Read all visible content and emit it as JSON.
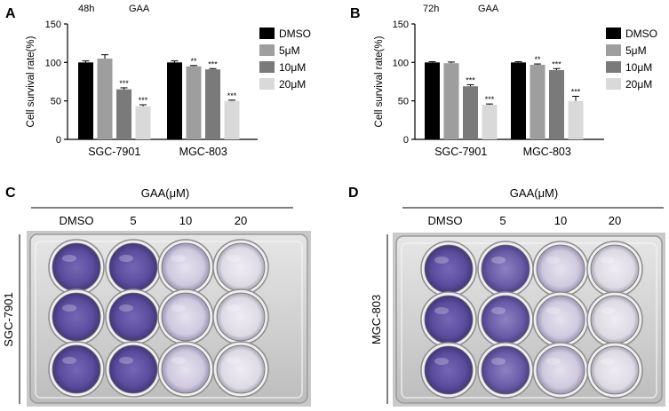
{
  "panels": [
    {
      "letter": "A",
      "time_label": "48h",
      "agent_label": "GAA"
    },
    {
      "letter": "B",
      "time_label": "72h",
      "agent_label": "GAA"
    },
    {
      "letter": "C",
      "header": "GAA(μM)",
      "columns": [
        "DMSO",
        "5",
        "10",
        "20"
      ],
      "side_label": "SGC-7901"
    },
    {
      "letter": "D",
      "header": "GAA(μM)",
      "columns": [
        "DMSO",
        "5",
        "10",
        "20"
      ],
      "side_label": "MGC-803"
    }
  ],
  "colors": {
    "DMSO": "#000000",
    "5μM": "#9e9e9e",
    "10μM": "#7a7a7a",
    "20μM": "#d9d9d9",
    "stain": "#5a4a9c",
    "plate": "#c8c8c8"
  },
  "chart_data": [
    {
      "type": "bar",
      "ylabel": "Cell survival rate(%)",
      "ylim": [
        0,
        150
      ],
      "yticks": [
        "0",
        "50",
        "100",
        "150"
      ],
      "categories": [
        "SGC-7901",
        "MGC-803"
      ],
      "legend": "top-right",
      "series": [
        {
          "name": "DMSO",
          "values": [
            100,
            100
          ],
          "errors": [
            2,
            2
          ],
          "sig": [
            "",
            ""
          ]
        },
        {
          "name": "5μM",
          "values": [
            105,
            95
          ],
          "errors": [
            5,
            1
          ],
          "sig": [
            "",
            "**"
          ]
        },
        {
          "name": "10μM",
          "values": [
            65,
            91
          ],
          "errors": [
            2,
            1
          ],
          "sig": [
            "***",
            "***"
          ]
        },
        {
          "name": "20μM",
          "values": [
            43,
            50
          ],
          "errors": [
            2,
            1
          ],
          "sig": [
            "***",
            "***"
          ]
        }
      ]
    },
    {
      "type": "bar",
      "ylabel": "Cell survival rate(%)",
      "ylim": [
        0,
        150
      ],
      "yticks": [
        "0",
        "50",
        "100",
        "150"
      ],
      "categories": [
        "SGC-7901",
        "MGC-803"
      ],
      "legend": "top-right",
      "series": [
        {
          "name": "DMSO",
          "values": [
            100,
            100
          ],
          "errors": [
            1,
            1
          ],
          "sig": [
            "",
            ""
          ]
        },
        {
          "name": "5μM",
          "values": [
            99,
            97
          ],
          "errors": [
            1.5,
            1
          ],
          "sig": [
            "",
            "**"
          ]
        },
        {
          "name": "10μM",
          "values": [
            69,
            90
          ],
          "errors": [
            2,
            2
          ],
          "sig": [
            "***",
            "***"
          ]
        },
        {
          "name": "20μM",
          "values": [
            45,
            50
          ],
          "errors": [
            1,
            6
          ],
          "sig": [
            "***",
            "***"
          ]
        }
      ]
    }
  ]
}
